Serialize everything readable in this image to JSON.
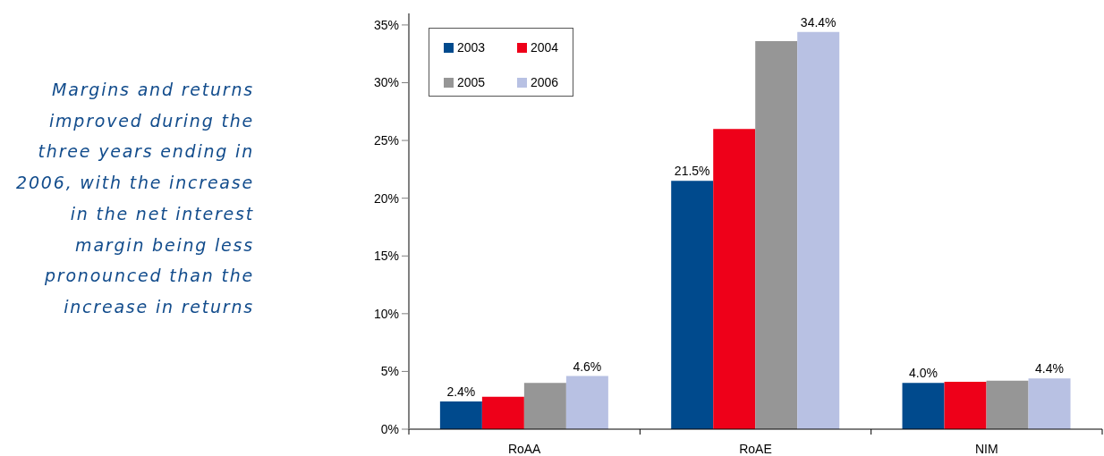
{
  "chart_data": {
    "type": "bar",
    "annotations": [
      "Margins and returns improved during the three years ending in 2006, with the increase in the net interest margin being less pronounced than the increase in returns"
    ],
    "categories": [
      "RoAA",
      "RoAE",
      "NIM"
    ],
    "series": [
      {
        "name": "2003",
        "color": "#004a8d",
        "values": [
          2.4,
          21.5,
          4.0
        ],
        "value_labels": [
          "2.4%",
          "21.5%",
          "4.0%"
        ]
      },
      {
        "name": "2004",
        "color": "#ee0019",
        "values": [
          2.8,
          26.0,
          4.1
        ],
        "value_labels": [
          null,
          null,
          null
        ]
      },
      {
        "name": "2005",
        "color": "#969696",
        "values": [
          4.0,
          33.6,
          4.2
        ],
        "value_labels": [
          null,
          null,
          null
        ]
      },
      {
        "name": "2006",
        "color": "#b8c1e3",
        "values": [
          4.6,
          34.4,
          4.4
        ],
        "value_labels": [
          "4.6%",
          "34.4%",
          "4.4%"
        ]
      }
    ],
    "ylim": [
      0,
      36
    ],
    "yticks": [
      {
        "value": 0,
        "label": "0%"
      },
      {
        "value": 5,
        "label": "5%"
      },
      {
        "value": 10,
        "label": "10%"
      },
      {
        "value": 15,
        "label": "15%"
      },
      {
        "value": 20,
        "label": "20%"
      },
      {
        "value": 25,
        "label": "25%"
      },
      {
        "value": 30,
        "label": "30%"
      },
      {
        "value": 35,
        "label": "35%"
      }
    ],
    "legend": "top left"
  }
}
